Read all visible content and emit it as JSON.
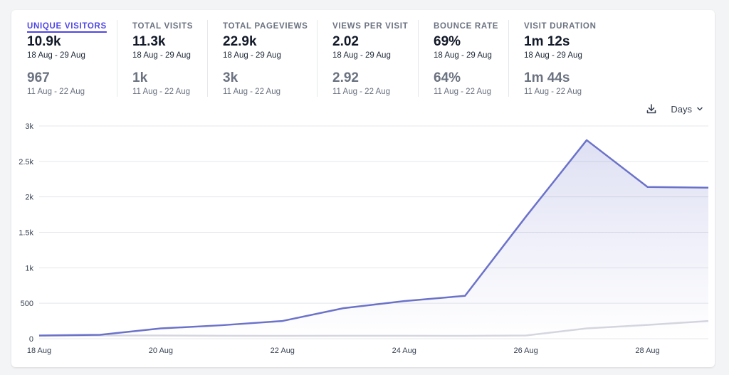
{
  "metrics": [
    {
      "label": "UNIQUE VISITORS",
      "value": "10.9k",
      "range": "18 Aug - 29 Aug",
      "prev_value": "967",
      "prev_range": "11 Aug - 22 Aug",
      "active": true
    },
    {
      "label": "TOTAL VISITS",
      "value": "11.3k",
      "range": "18 Aug - 29 Aug",
      "prev_value": "1k",
      "prev_range": "11 Aug - 22 Aug",
      "active": false
    },
    {
      "label": "TOTAL PAGEVIEWS",
      "value": "22.9k",
      "range": "18 Aug - 29 Aug",
      "prev_value": "3k",
      "prev_range": "11 Aug - 22 Aug",
      "active": false
    },
    {
      "label": "VIEWS PER VISIT",
      "value": "2.02",
      "range": "18 Aug - 29 Aug",
      "prev_value": "2.92",
      "prev_range": "11 Aug - 22 Aug",
      "active": false
    },
    {
      "label": "BOUNCE RATE",
      "value": "69%",
      "range": "18 Aug - 29 Aug",
      "prev_value": "64%",
      "prev_range": "11 Aug - 22 Aug",
      "active": false
    },
    {
      "label": "VISIT DURATION",
      "value": "1m 12s",
      "range": "18 Aug - 29 Aug",
      "prev_value": "1m 44s",
      "prev_range": "11 Aug - 22 Aug",
      "active": false
    }
  ],
  "controls": {
    "interval_label": "Days",
    "download_icon": "download-icon",
    "dropdown_icon": "chevron-down-icon"
  },
  "colors": {
    "accent": "#4f46e5",
    "current_line": "#6b72c9",
    "previous_line": "#d6d6e0",
    "grid": "#e5e7eb"
  },
  "chart_data": {
    "type": "line",
    "x": [
      "18 Aug",
      "19 Aug",
      "20 Aug",
      "21 Aug",
      "22 Aug",
      "23 Aug",
      "24 Aug",
      "25 Aug",
      "26 Aug",
      "27 Aug",
      "28 Aug",
      "29 Aug"
    ],
    "x_tick_labels": [
      "18 Aug",
      "20 Aug",
      "22 Aug",
      "24 Aug",
      "26 Aug",
      "28 Aug"
    ],
    "y_tick_labels": [
      "0",
      "500",
      "1k",
      "1.5k",
      "2k",
      "2.5k",
      "3k"
    ],
    "ylim": [
      0,
      3000
    ],
    "grid": true,
    "series": [
      {
        "values": [
          45,
          55,
          145,
          190,
          250,
          430,
          530,
          605,
          1720,
          2800,
          2140,
          2130
        ]
      },
      {
        "values": [
          40,
          45,
          45,
          42,
          40,
          42,
          42,
          40,
          45,
          145,
          195,
          250
        ]
      }
    ]
  }
}
